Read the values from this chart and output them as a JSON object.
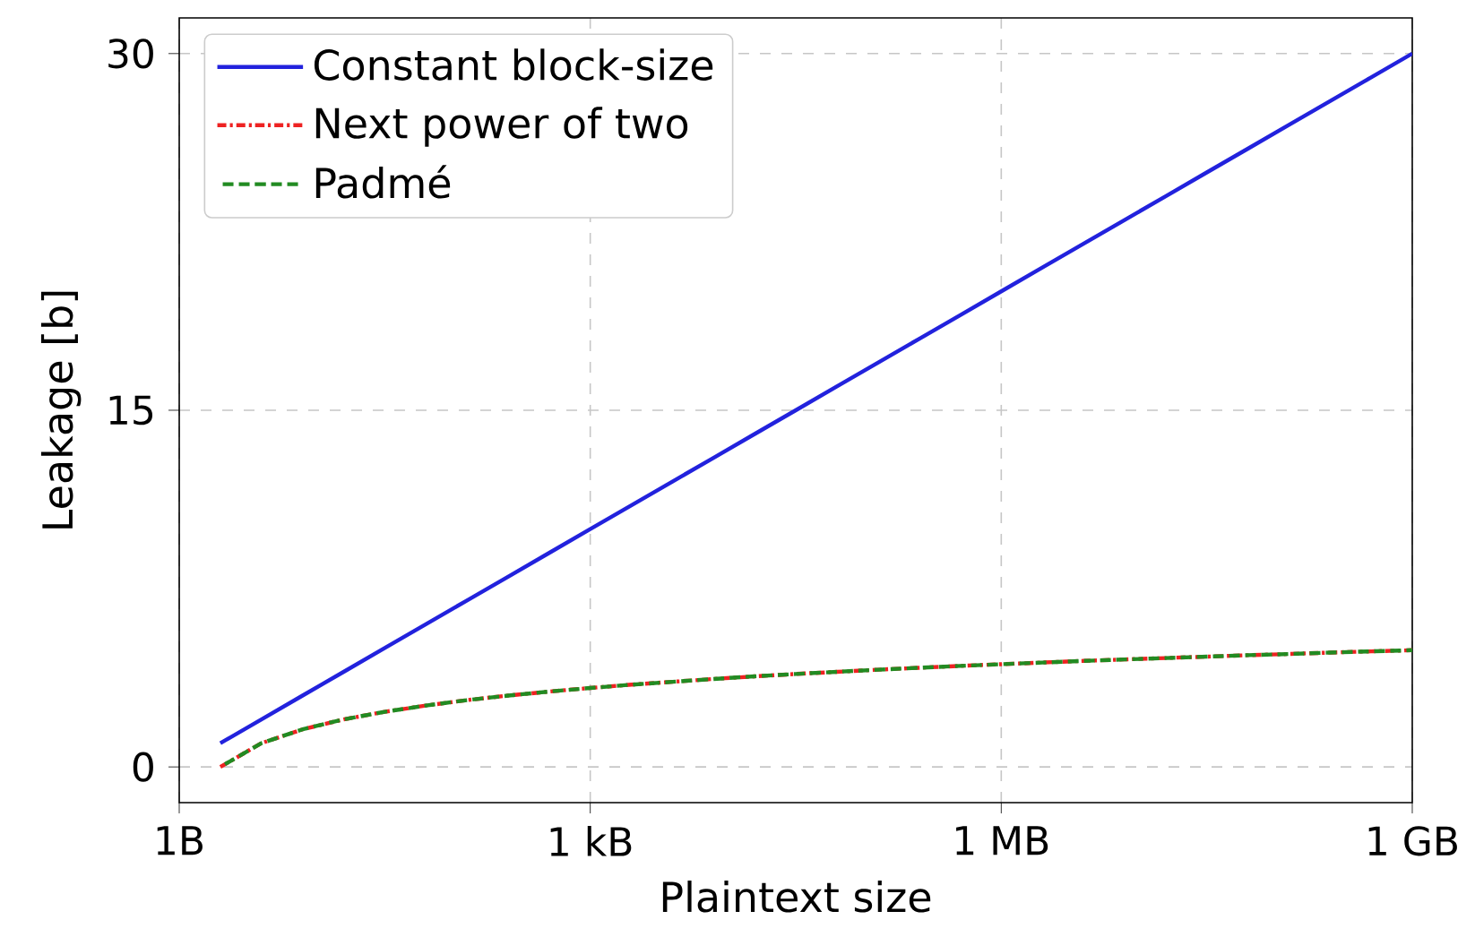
{
  "chart_data": {
    "type": "line",
    "xlabel": "Plaintext size",
    "ylabel": "Leakage [b]",
    "categories": [
      "1B",
      null,
      null,
      null,
      null,
      null,
      null,
      null,
      null,
      null,
      "1 kB",
      null,
      null,
      null,
      null,
      null,
      null,
      null,
      null,
      null,
      "1 MB",
      null,
      null,
      null,
      null,
      null,
      null,
      null,
      null,
      null,
      "1 GB"
    ],
    "series": [
      {
        "name": "Constant block-size",
        "color": "#2222dd",
        "line_style": "solid",
        "values": [
          null,
          1,
          2,
          3,
          4,
          5,
          6,
          7,
          8,
          9,
          10,
          11,
          12,
          13,
          14,
          15,
          16,
          17,
          18,
          19,
          20,
          21,
          22,
          23,
          24,
          25,
          26,
          27,
          28,
          29,
          30
        ]
      },
      {
        "name": "Next power of two",
        "color": "#ee2222",
        "line_style": "dashdot",
        "values": [
          null,
          0,
          1,
          1.58,
          2,
          2.32,
          2.58,
          2.81,
          3,
          3.17,
          3.32,
          3.46,
          3.58,
          3.7,
          3.81,
          3.91,
          4,
          4.09,
          4.17,
          4.25,
          4.32,
          4.39,
          4.46,
          4.52,
          4.58,
          4.64,
          4.7,
          4.75,
          4.81,
          4.86,
          4.91
        ]
      },
      {
        "name": "Padmé",
        "color": "#228b22",
        "line_style": "dashed",
        "values": [
          null,
          0,
          1,
          1.58,
          2,
          2.32,
          2.58,
          2.81,
          3,
          3.17,
          3.32,
          3.46,
          3.58,
          3.7,
          3.81,
          3.91,
          4,
          4.09,
          4.17,
          4.25,
          4.32,
          4.39,
          4.46,
          4.52,
          4.58,
          4.64,
          4.7,
          4.75,
          4.81,
          4.86,
          4.91
        ]
      }
    ],
    "ylim": [
      -1.5,
      31.5
    ],
    "yticks": [
      0,
      15,
      30
    ],
    "grid": true,
    "legend": "top left"
  }
}
